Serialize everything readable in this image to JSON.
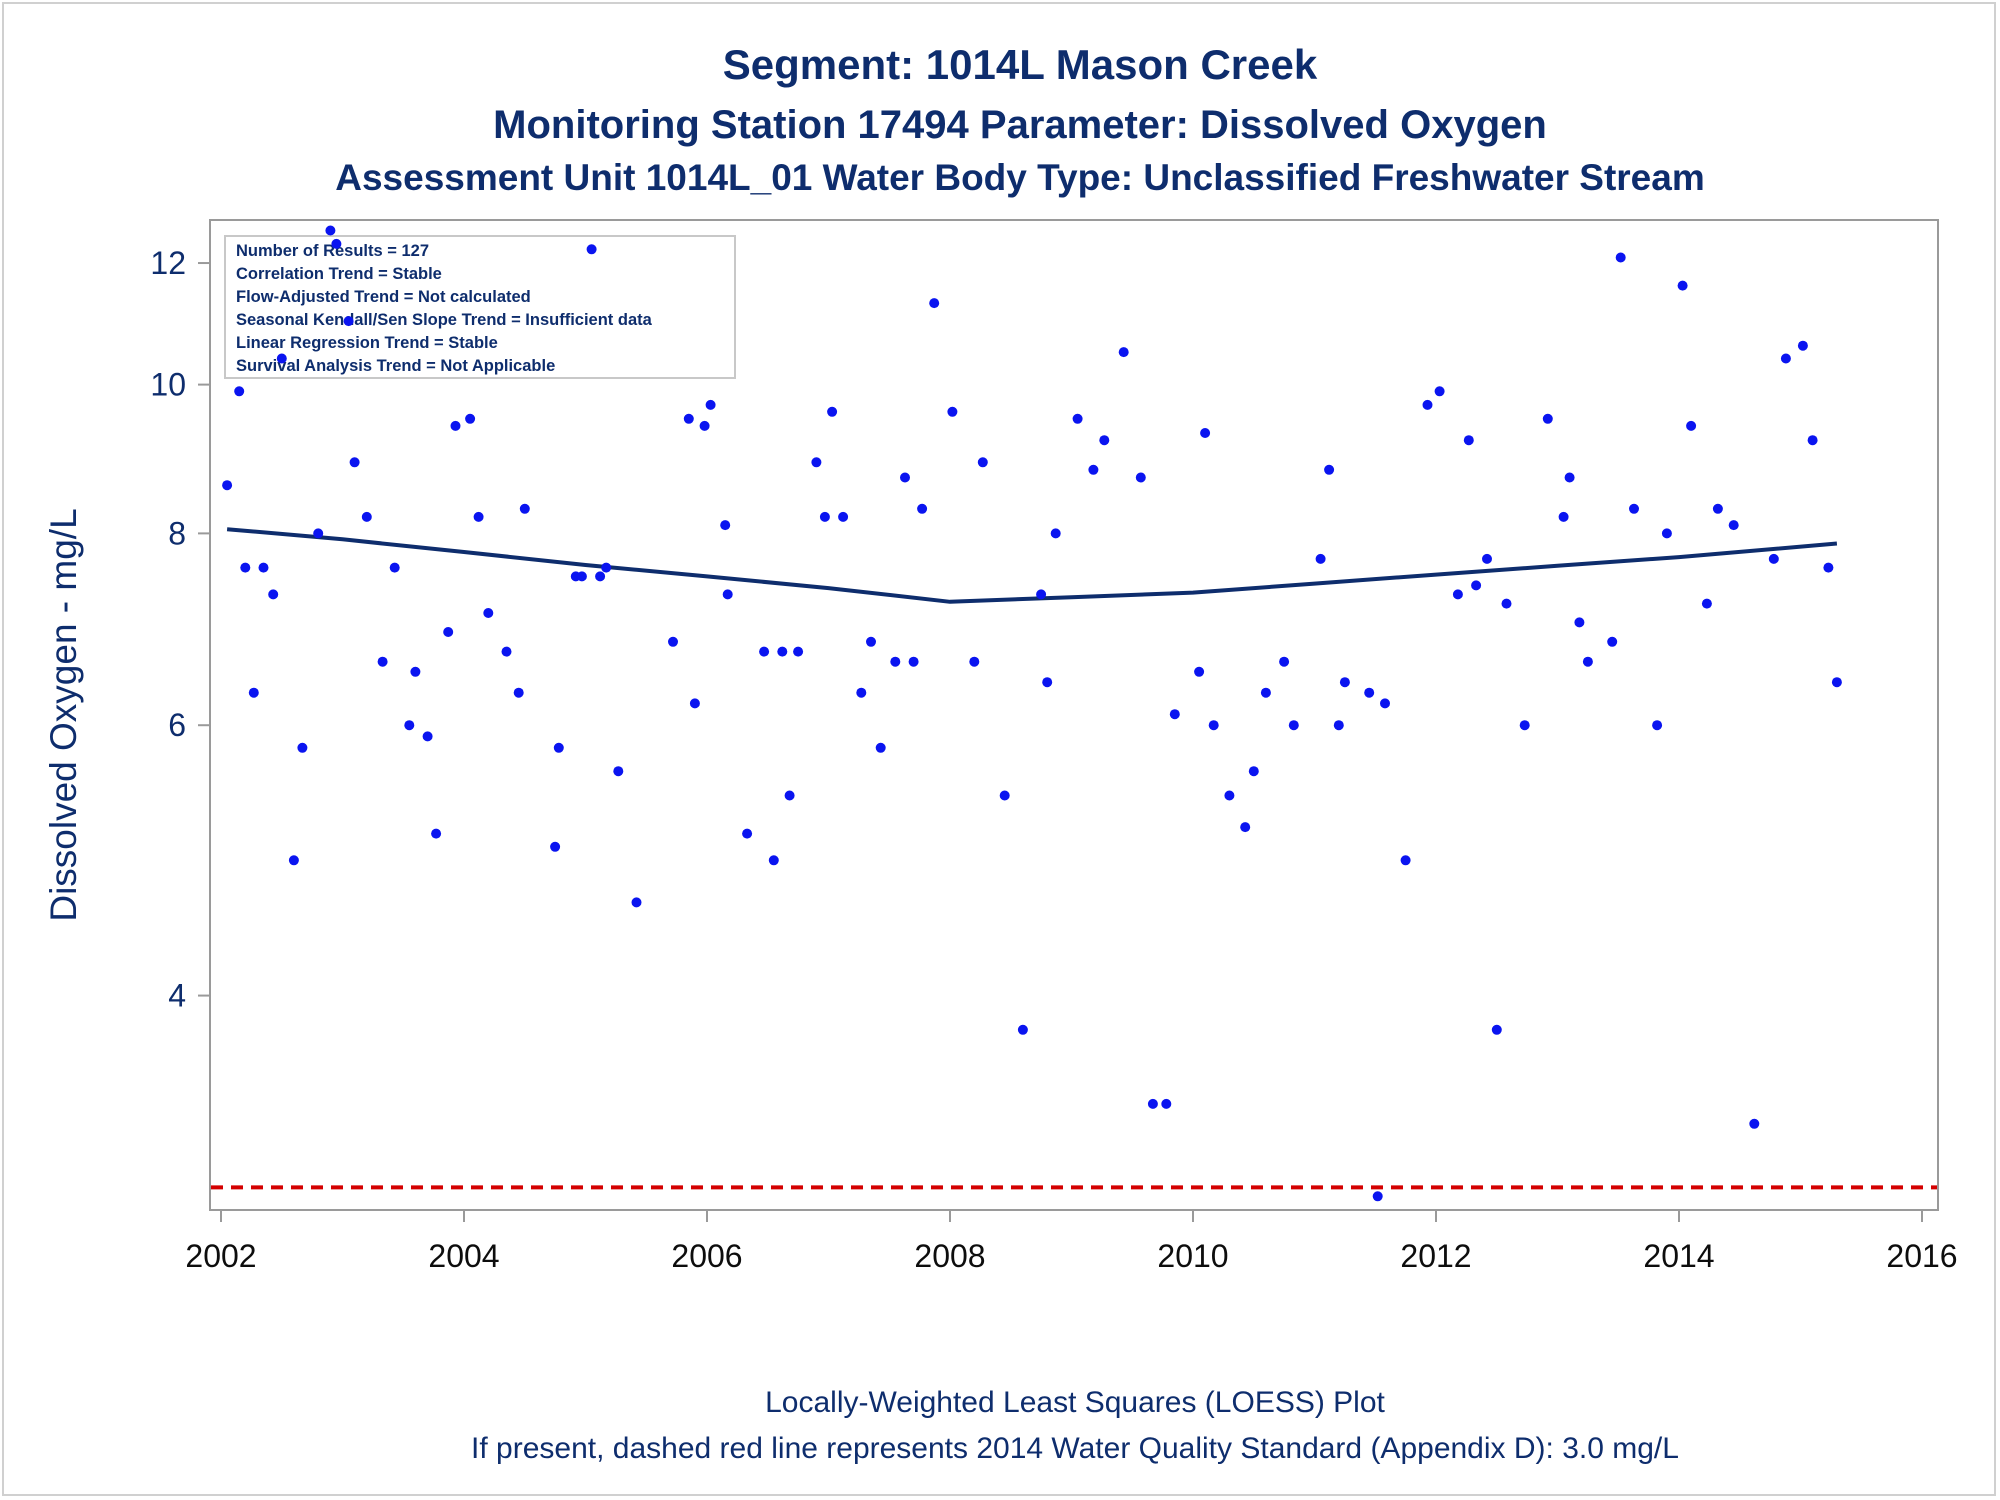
{
  "titles": {
    "line1": "Segment: 1014L  Mason Creek",
    "line2": "Monitoring Station 17494 Parameter: Dissolved Oxygen",
    "line3": "Assessment Unit 1014L_01   Water Body Type: Unclassified Freshwater Stream"
  },
  "footnotes": {
    "line1": "Locally-Weighted Least Squares (LOESS) Plot",
    "line2": "If present, dashed red line represents 2014 Water Quality Standard (Appendix D): 3.0 mg/L"
  },
  "info_box": [
    "Number of Results = 127",
    "Correlation Trend = Stable",
    "Flow-Adjusted Trend = Not calculated",
    "Seasonal Kendall/Sen Slope Trend = Insufficient data",
    "Linear Regression Trend = Stable",
    "Survival Analysis Trend = Not Applicable"
  ],
  "colors": {
    "points": "#0a14f0",
    "loess": "#0e2d6d",
    "standard_line": "#d40000",
    "text": "#0e2d6d",
    "axis": "#9a9a9a"
  },
  "chart_data": {
    "type": "scatter",
    "xlabel": "",
    "ylabel": "Dissolved Oxygen - mg/L",
    "xlim": [
      2002,
      2016
    ],
    "ylim": [
      2.9,
      12.8
    ],
    "y_scale": "log",
    "xticks": [
      2002,
      2004,
      2006,
      2008,
      2010,
      2012,
      2014,
      2016
    ],
    "yticks": [
      4,
      6,
      8,
      10,
      12
    ],
    "series": [
      {
        "points": [
          [
            2002.05,
            8.6
          ],
          [
            2002.15,
            9.9
          ],
          [
            2002.2,
            7.6
          ],
          [
            2002.27,
            6.3
          ],
          [
            2002.35,
            7.6
          ],
          [
            2002.43,
            7.3
          ],
          [
            2002.5,
            10.4
          ],
          [
            2002.6,
            4.9
          ],
          [
            2002.67,
            5.8
          ],
          [
            2002.8,
            8.0
          ],
          [
            2002.9,
            12.6
          ],
          [
            2002.95,
            12.35
          ],
          [
            2003.05,
            11.0
          ],
          [
            2003.1,
            8.9
          ],
          [
            2003.2,
            8.2
          ],
          [
            2003.33,
            6.6
          ],
          [
            2003.43,
            7.6
          ],
          [
            2003.55,
            6.0
          ],
          [
            2003.6,
            6.5
          ],
          [
            2003.7,
            5.9
          ],
          [
            2003.77,
            5.1
          ],
          [
            2003.87,
            6.9
          ],
          [
            2003.93,
            9.4
          ],
          [
            2004.05,
            9.5
          ],
          [
            2004.12,
            8.2
          ],
          [
            2004.2,
            7.1
          ],
          [
            2004.35,
            6.7
          ],
          [
            2004.45,
            6.3
          ],
          [
            2004.5,
            8.3
          ],
          [
            2004.75,
            5.0
          ],
          [
            2004.78,
            5.8
          ],
          [
            2004.92,
            7.5
          ],
          [
            2004.97,
            7.5
          ],
          [
            2005.05,
            12.25
          ],
          [
            2005.12,
            7.5
          ],
          [
            2005.17,
            7.6
          ],
          [
            2005.27,
            5.6
          ],
          [
            2005.42,
            4.6
          ],
          [
            2005.72,
            6.8
          ],
          [
            2005.85,
            9.5
          ],
          [
            2005.9,
            6.2
          ],
          [
            2005.98,
            9.4
          ],
          [
            2006.03,
            9.7
          ],
          [
            2006.15,
            8.1
          ],
          [
            2006.17,
            7.3
          ],
          [
            2006.33,
            5.1
          ],
          [
            2006.47,
            6.7
          ],
          [
            2006.55,
            4.9
          ],
          [
            2006.62,
            6.7
          ],
          [
            2006.68,
            5.4
          ],
          [
            2006.75,
            6.7
          ],
          [
            2006.9,
            8.9
          ],
          [
            2006.97,
            8.2
          ],
          [
            2007.03,
            9.6
          ],
          [
            2007.12,
            8.2
          ],
          [
            2007.27,
            6.3
          ],
          [
            2007.35,
            6.8
          ],
          [
            2007.43,
            5.8
          ],
          [
            2007.55,
            6.6
          ],
          [
            2007.63,
            8.7
          ],
          [
            2007.7,
            6.6
          ],
          [
            2007.77,
            8.3
          ],
          [
            2007.87,
            11.3
          ],
          [
            2008.02,
            9.6
          ],
          [
            2008.2,
            6.6
          ],
          [
            2008.27,
            8.9
          ],
          [
            2008.45,
            5.4
          ],
          [
            2008.6,
            3.8
          ],
          [
            2008.75,
            7.3
          ],
          [
            2008.8,
            6.4
          ],
          [
            2008.87,
            8.0
          ],
          [
            2009.05,
            9.5
          ],
          [
            2009.18,
            8.8
          ],
          [
            2009.27,
            9.2
          ],
          [
            2009.43,
            10.5
          ],
          [
            2009.57,
            8.7
          ],
          [
            2009.67,
            3.4
          ],
          [
            2009.78,
            3.4
          ],
          [
            2009.85,
            6.1
          ],
          [
            2010.05,
            6.5
          ],
          [
            2010.1,
            9.3
          ],
          [
            2010.17,
            6.0
          ],
          [
            2010.3,
            5.4
          ],
          [
            2010.43,
            5.15
          ],
          [
            2010.5,
            5.6
          ],
          [
            2010.6,
            6.3
          ],
          [
            2010.75,
            6.6
          ],
          [
            2010.83,
            6.0
          ],
          [
            2011.05,
            7.7
          ],
          [
            2011.12,
            8.8
          ],
          [
            2011.2,
            6.0
          ],
          [
            2011.25,
            6.4
          ],
          [
            2011.45,
            6.3
          ],
          [
            2011.52,
            2.96
          ],
          [
            2011.58,
            6.2
          ],
          [
            2011.75,
            4.9
          ],
          [
            2011.93,
            9.7
          ],
          [
            2012.03,
            9.9
          ],
          [
            2012.18,
            7.3
          ],
          [
            2012.27,
            9.2
          ],
          [
            2012.33,
            7.4
          ],
          [
            2012.42,
            7.7
          ],
          [
            2012.5,
            3.8
          ],
          [
            2012.58,
            7.2
          ],
          [
            2012.73,
            6.0
          ],
          [
            2012.92,
            9.5
          ],
          [
            2013.05,
            8.2
          ],
          [
            2013.1,
            8.7
          ],
          [
            2013.18,
            7.0
          ],
          [
            2013.25,
            6.6
          ],
          [
            2013.45,
            6.8
          ],
          [
            2013.52,
            12.1
          ],
          [
            2013.63,
            8.3
          ],
          [
            2013.82,
            6.0
          ],
          [
            2013.9,
            8.0
          ],
          [
            2014.03,
            11.6
          ],
          [
            2014.1,
            9.4
          ],
          [
            2014.23,
            7.2
          ],
          [
            2014.32,
            8.3
          ],
          [
            2014.45,
            8.1
          ],
          [
            2014.62,
            3.3
          ],
          [
            2014.78,
            7.7
          ],
          [
            2014.88,
            10.4
          ],
          [
            2015.02,
            10.6
          ],
          [
            2015.1,
            9.2
          ],
          [
            2015.23,
            7.6
          ],
          [
            2015.3,
            6.4
          ]
        ]
      }
    ],
    "loess": [
      [
        2002.05,
        8.05
      ],
      [
        2003.0,
        7.93
      ],
      [
        2004.0,
        7.78
      ],
      [
        2005.0,
        7.63
      ],
      [
        2006.0,
        7.5
      ],
      [
        2007.0,
        7.37
      ],
      [
        2008.0,
        7.22
      ],
      [
        2009.0,
        7.27
      ],
      [
        2010.0,
        7.32
      ],
      [
        2011.0,
        7.42
      ],
      [
        2012.0,
        7.52
      ],
      [
        2013.0,
        7.62
      ],
      [
        2014.0,
        7.72
      ],
      [
        2015.3,
        7.88
      ]
    ],
    "standard_line": 3.0
  }
}
